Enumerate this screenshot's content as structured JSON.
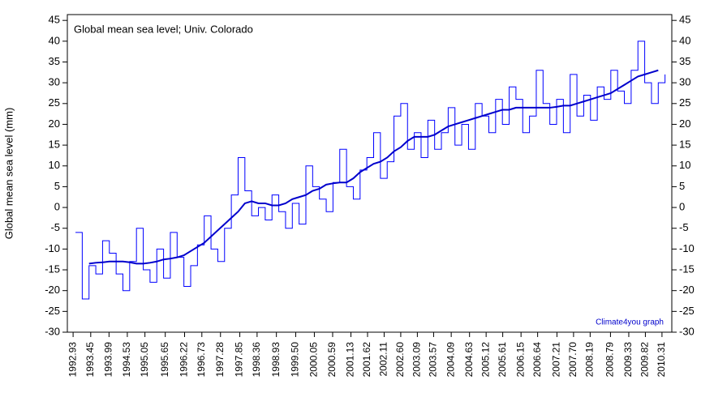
{
  "chart_data": {
    "type": "line",
    "title": "Global mean sea level; Univ. Colorado",
    "y_label": "Global mean sea level (mm)",
    "annotation": "Climate4you graph",
    "xlim": [
      1992.76,
      2010.6
    ],
    "ylim": [
      -30,
      46.4
    ],
    "xticks": [
      1992.93,
      1993.45,
      1993.99,
      1994.53,
      1995.05,
      1995.65,
      1996.22,
      1996.73,
      1997.28,
      1997.85,
      1998.36,
      1998.93,
      {
        "value": 1999.5,
        "label": "1999.50"
      },
      2000.05,
      2000.59,
      2001.13,
      2001.62,
      2002.11,
      {
        "value": 2002.6,
        "label": "2002.60"
      },
      2003.09,
      2003.57,
      2004.09,
      2004.63,
      2005.12,
      2005.61,
      2006.15,
      2006.64,
      2007.21,
      {
        "value": 2007.7,
        "label": "2007.70"
      },
      2008.19,
      2008.79,
      2009.33,
      2009.82,
      2010.31
    ],
    "yticks": [
      -30,
      -25,
      -20,
      -15,
      -10,
      -5,
      0,
      5,
      10,
      15,
      20,
      25,
      30,
      35,
      40,
      45
    ],
    "x": [
      1993.0,
      1993.2,
      1993.4,
      1993.6,
      1993.8,
      1994.0,
      1994.2,
      1994.4,
      1994.6,
      1994.8,
      1995.0,
      1995.2,
      1995.4,
      1995.6,
      1995.8,
      1996.0,
      1996.2,
      1996.4,
      1996.6,
      1996.8,
      1997.0,
      1997.2,
      1997.4,
      1997.6,
      1997.8,
      1998.0,
      1998.2,
      1998.4,
      1998.6,
      1998.8,
      1999.0,
      1999.2,
      1999.4,
      1999.6,
      1999.8,
      2000.0,
      2000.2,
      2000.4,
      2000.6,
      2000.8,
      2001.0,
      2001.2,
      2001.4,
      2001.6,
      2001.8,
      2002.0,
      2002.2,
      2002.4,
      2002.6,
      2002.8,
      2003.0,
      2003.2,
      2003.4,
      2003.6,
      2003.8,
      2004.0,
      2004.2,
      2004.4,
      2004.6,
      2004.8,
      2005.0,
      2005.2,
      2005.4,
      2005.6,
      2005.8,
      2006.0,
      2006.2,
      2006.4,
      2006.6,
      2006.8,
      2007.0,
      2007.2,
      2007.4,
      2007.6,
      2007.8,
      2008.0,
      2008.2,
      2008.4,
      2008.6,
      2008.8,
      2009.0,
      2009.2,
      2009.4,
      2009.6,
      2009.8,
      2010.0,
      2010.2,
      2010.4
    ],
    "series": [
      {
        "color": "#0000ff",
        "step": true,
        "width": 1,
        "values": [
          -6,
          -22,
          -14,
          -16,
          -8,
          -11,
          -16,
          -20,
          -13,
          -5,
          -15,
          -18,
          -10,
          -17,
          -6,
          -12,
          -19,
          -14,
          -9,
          -2,
          -10,
          -13,
          -5,
          3,
          12,
          4,
          -2,
          0,
          -3,
          3,
          -1,
          -5,
          1,
          -4,
          10,
          5,
          2,
          -1,
          6,
          14,
          5,
          2,
          9,
          12,
          18,
          7,
          11,
          22,
          25,
          14,
          18,
          12,
          21,
          14,
          18,
          24,
          15,
          20,
          14,
          25,
          22,
          18,
          26,
          20,
          29,
          26,
          18,
          22,
          33,
          25,
          20,
          26,
          18,
          32,
          22,
          27,
          21,
          29,
          26,
          33,
          28,
          25,
          33,
          40,
          30,
          25,
          30,
          32
        ]
      },
      {
        "color": "#0000cc",
        "step": false,
        "width": 2,
        "values": [
          null,
          null,
          -13.5,
          -13.3,
          -13.2,
          -13,
          -13,
          -13,
          -13.2,
          -13.5,
          -13.5,
          -13.3,
          -13,
          -12.5,
          -12.3,
          -12,
          -11.5,
          -10.5,
          -9.5,
          -8.5,
          -7,
          -5.5,
          -4,
          -2.5,
          -1,
          1,
          1.5,
          1,
          1,
          0.5,
          0.5,
          1,
          2,
          2.5,
          3,
          4,
          4.5,
          5.5,
          5.8,
          6,
          6,
          7,
          8.5,
          9.5,
          10.5,
          11,
          12,
          13.5,
          14.5,
          16,
          17,
          17,
          17,
          17.5,
          18.5,
          19.5,
          20,
          20.5,
          21,
          21.5,
          22,
          22.5,
          23,
          23.5,
          23.5,
          24,
          24,
          24,
          24,
          24,
          24,
          24.2,
          24.5,
          24.5,
          25,
          25.5,
          26,
          26.5,
          27,
          27.5,
          28.5,
          29.5,
          30.5,
          31.5,
          32,
          32.5,
          33,
          null
        ]
      }
    ]
  }
}
